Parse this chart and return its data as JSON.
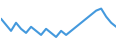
{
  "x": [
    0,
    1,
    2,
    3,
    4,
    5,
    6,
    7,
    8,
    9,
    10,
    11,
    12,
    13,
    14,
    15,
    16,
    17,
    18,
    19,
    20,
    21,
    22,
    23
  ],
  "y": [
    6.5,
    5.0,
    3.5,
    5.5,
    4.0,
    3.0,
    4.5,
    3.5,
    2.5,
    4.0,
    3.0,
    2.0,
    3.5,
    2.5,
    3.5,
    4.5,
    5.5,
    6.5,
    7.5,
    8.5,
    9.0,
    7.0,
    5.5,
    4.5
  ],
  "line_color": "#4499dd",
  "linewidth": 1.5,
  "background_color": "#ffffff",
  "ylim": [
    1.0,
    11.0
  ]
}
